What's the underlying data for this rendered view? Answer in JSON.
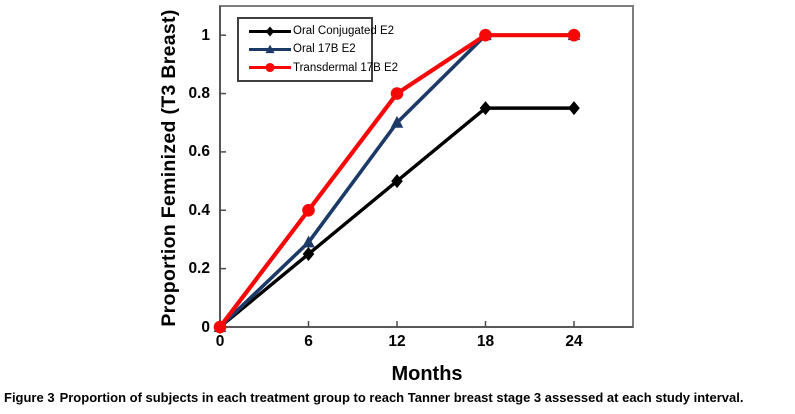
{
  "figure": {
    "caption_label": "Figure 3",
    "caption_text": "Proportion of subjects in each treatment group to reach Tanner breast stage 3 assessed at each study interval."
  },
  "chart_data": {
    "type": "line",
    "title": "",
    "xlabel": "Months",
    "ylabel": "Proportion Feminized (T3 Breast)",
    "x": [
      0,
      6,
      12,
      18,
      24
    ],
    "xlim": [
      0,
      28
    ],
    "ylim": [
      0,
      1.1
    ],
    "grid": false,
    "legend_position": "top-left-inside",
    "xticks": [
      {
        "v": 0,
        "label": "0"
      },
      {
        "v": 6,
        "label": "6"
      },
      {
        "v": 12,
        "label": "12"
      },
      {
        "v": 18,
        "label": "18"
      },
      {
        "v": 24,
        "label": "24"
      }
    ],
    "yticks": [
      {
        "v": 0,
        "label": "0"
      },
      {
        "v": 0.2,
        "label": "0.2"
      },
      {
        "v": 0.4,
        "label": "0.4"
      },
      {
        "v": 0.6,
        "label": "0.6"
      },
      {
        "v": 0.8,
        "label": "0.8"
      },
      {
        "v": 1,
        "label": "1"
      }
    ],
    "series": [
      {
        "name": "Oral Conjugated E2",
        "color": "#000000",
        "marker": "diamond",
        "line_width": 3.4,
        "values": [
          0,
          0.25,
          0.5,
          0.75,
          0.75
        ]
      },
      {
        "name": "Oral 17B E2",
        "color": "#1c3a68",
        "marker": "triangle",
        "line_width": 3.6,
        "values": [
          0,
          0.29,
          0.7,
          1,
          1
        ]
      },
      {
        "name": "Transdermal 17B E2",
        "color": "#f70808",
        "marker": "circle",
        "line_width": 4.2,
        "values": [
          0,
          0.4,
          0.8,
          1,
          1
        ]
      }
    ]
  }
}
